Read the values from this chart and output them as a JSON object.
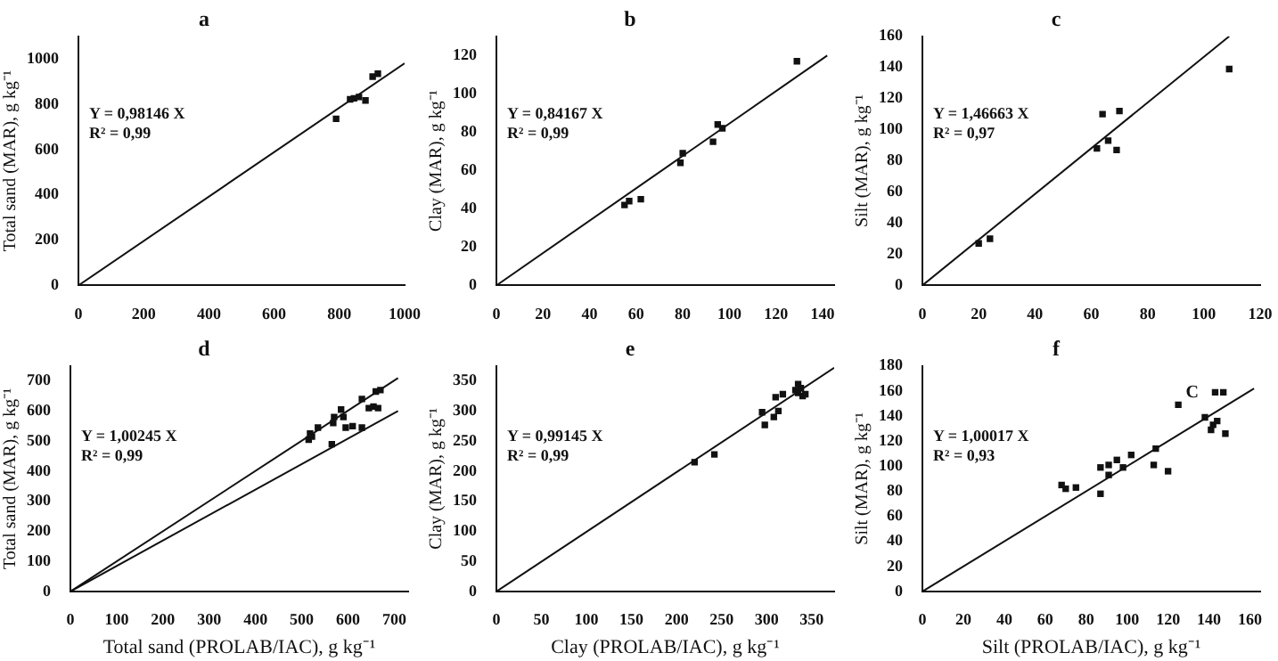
{
  "chart_data": [
    {
      "type": "scatter",
      "title": "a",
      "ylabel": "Total sand (MAR), g kg⁻¹",
      "xlim": [
        0,
        1000
      ],
      "xticks": [
        0,
        200,
        400,
        600,
        800,
        1000
      ],
      "ylim": [
        0,
        1100
      ],
      "yticks": [
        0,
        200,
        400,
        600,
        800,
        1000
      ],
      "grid": false,
      "legend": false,
      "marker": "square",
      "annotations": [
        "Y = 0,98146 X",
        "R² = 0,99"
      ],
      "series": [
        {
          "type": "scatter",
          "color": "#111111",
          "x": [
            790,
            833,
            845,
            860,
            880,
            902,
            918
          ],
          "values": [
            736,
            822,
            826,
            832,
            817,
            922,
            935
          ]
        },
        {
          "type": "line",
          "color": "#111111",
          "marker": "none",
          "x": [
            0,
            1000
          ],
          "values": [
            0,
            981
          ]
        }
      ]
    },
    {
      "type": "scatter",
      "title": "b",
      "ylabel": "Clay (MAR), g kg⁻¹",
      "xlim": [
        0,
        145
      ],
      "xticks": [
        0,
        20,
        40,
        60,
        80,
        100,
        120,
        140
      ],
      "ylim": [
        0,
        130
      ],
      "yticks": [
        0,
        20,
        40,
        60,
        80,
        100,
        120
      ],
      "grid": false,
      "legend": false,
      "marker": "square",
      "annotations": [
        "Y = 0,84167 X",
        "R² = 0,99"
      ],
      "series": [
        {
          "type": "scatter",
          "color": "#111111",
          "x": [
            55,
            57,
            62,
            79,
            80,
            93,
            95,
            97,
            129
          ],
          "values": [
            42,
            44,
            45,
            64,
            69,
            75,
            84,
            82,
            117
          ]
        },
        {
          "type": "line",
          "color": "#111111",
          "marker": "none",
          "x": [
            0,
            142
          ],
          "values": [
            0,
            120
          ]
        }
      ]
    },
    {
      "type": "scatter",
      "title": "c",
      "ylabel": "Silt (MAR), g kg⁻¹",
      "xlim": [
        0,
        120
      ],
      "xticks": [
        0,
        20,
        40,
        60,
        80,
        100,
        120
      ],
      "ylim": [
        0,
        160
      ],
      "yticks": [
        0,
        20,
        40,
        60,
        80,
        100,
        120,
        140,
        160
      ],
      "grid": false,
      "legend": false,
      "marker": "square",
      "annotations": [
        "Y = 1,46663 X",
        "R² = 0,97"
      ],
      "series": [
        {
          "type": "scatter",
          "color": "#111111",
          "x": [
            20,
            24,
            62,
            64,
            66,
            69,
            70,
            109
          ],
          "values": [
            27,
            30,
            88,
            110,
            93,
            87,
            112,
            139
          ]
        },
        {
          "type": "line",
          "color": "#111111",
          "marker": "none",
          "x": [
            0,
            109
          ],
          "values": [
            0,
            160
          ]
        }
      ]
    },
    {
      "type": "scatter",
      "title": "d",
      "xlabel": "Total sand (PROLAB/IAC), g kg⁻¹",
      "ylabel": "Total sand (MAR), g kg⁻¹",
      "xlim": [
        0,
        730
      ],
      "xticks": [
        0,
        100,
        200,
        300,
        400,
        500,
        600,
        700
      ],
      "ylim": [
        0,
        750
      ],
      "yticks": [
        0,
        100,
        200,
        300,
        400,
        500,
        600,
        700
      ],
      "grid": false,
      "legend": false,
      "marker": "square",
      "annotations": [
        "Y = 1,00245 X",
        "R² = 0,99"
      ],
      "series": [
        {
          "type": "scatter",
          "color": "#111111",
          "x": [
            515,
            518,
            522,
            535,
            565,
            568,
            570,
            585,
            590,
            595,
            610,
            630,
            630,
            645,
            655,
            660,
            665,
            670
          ],
          "values": [
            505,
            525,
            515,
            545,
            490,
            560,
            580,
            605,
            580,
            545,
            550,
            640,
            545,
            610,
            615,
            665,
            610,
            670
          ]
        },
        {
          "type": "line",
          "color": "#111111",
          "marker": "none",
          "x": [
            0,
            708
          ],
          "values": [
            0,
            710
          ]
        },
        {
          "type": "line",
          "color": "#111111",
          "marker": "none",
          "x": [
            0,
            708
          ],
          "values": [
            0,
            600
          ]
        }
      ]
    },
    {
      "type": "scatter",
      "title": "e",
      "xlabel": "Clay (PROLAB/IAC), g kg⁻¹",
      "ylabel": "Clay (MAR), g kg⁻¹",
      "xlim": [
        0,
        375
      ],
      "xticks": [
        0,
        50,
        100,
        150,
        200,
        250,
        300,
        350
      ],
      "ylim": [
        0,
        375
      ],
      "yticks": [
        0,
        50,
        100,
        150,
        200,
        250,
        300,
        350
      ],
      "grid": false,
      "legend": false,
      "marker": "square",
      "annotations": [
        "Y = 0,99145 X",
        "R² = 0,99"
      ],
      "series": [
        {
          "type": "scatter",
          "color": "#111111",
          "x": [
            220,
            242,
            295,
            298,
            308,
            310,
            313,
            318,
            332,
            335,
            335,
            338,
            340,
            343
          ],
          "values": [
            215,
            228,
            298,
            277,
            290,
            323,
            300,
            328,
            335,
            345,
            330,
            338,
            325,
            328
          ]
        },
        {
          "type": "line",
          "color": "#111111",
          "marker": "none",
          "x": [
            0,
            375
          ],
          "values": [
            0,
            372
          ]
        }
      ]
    },
    {
      "type": "scatter",
      "title": "f",
      "xlabel": "Silt (PROLAB/IAC), g kg⁻¹",
      "ylabel": "Silt (MAR), g kg⁻¹",
      "xlim": [
        0,
        165
      ],
      "xticks": [
        0,
        20,
        40,
        60,
        80,
        100,
        120,
        140,
        160
      ],
      "ylim": [
        0,
        180
      ],
      "yticks": [
        0,
        20,
        40,
        60,
        80,
        100,
        120,
        140,
        160,
        180
      ],
      "grid": false,
      "legend": false,
      "marker": "square",
      "annotations": [
        "Y = 1,00017 X",
        "R² = 0,93",
        "C"
      ],
      "series": [
        {
          "type": "scatter",
          "color": "#111111",
          "x": [
            68,
            70,
            75,
            87,
            87,
            91,
            91,
            95,
            98,
            102,
            113,
            114,
            120,
            125,
            138,
            141,
            142,
            144,
            143,
            147,
            148
          ],
          "values": [
            85,
            82,
            83,
            78,
            99,
            101,
            93,
            105,
            99,
            109,
            101,
            114,
            96,
            149,
            139,
            129,
            133,
            136,
            159,
            159,
            126
          ]
        },
        {
          "type": "line",
          "color": "#111111",
          "marker": "none",
          "x": [
            0,
            162
          ],
          "values": [
            0,
            162
          ]
        }
      ]
    }
  ]
}
